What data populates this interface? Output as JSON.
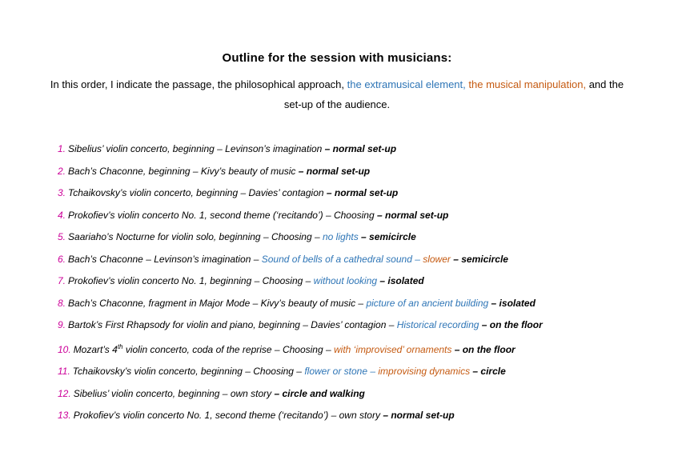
{
  "title": "Outline for the session with musicians:",
  "intro": {
    "segments": [
      {
        "text": "In this order, I indicate the passage, the philosophical approach, ",
        "style": "plain"
      },
      {
        "text": "the extramusical element,",
        "style": "blue"
      },
      {
        "text": " ",
        "style": "plain"
      },
      {
        "text": "the musical manipulation,",
        "style": "orange"
      },
      {
        "text": " and the set-up of the audience.",
        "style": "plain"
      }
    ]
  },
  "items": [
    {
      "number": "1.",
      "segments": [
        {
          "text": "Sibelius’ violin concerto, beginning – Levinson’s imagination ",
          "style": "plain"
        },
        {
          "text": "– normal set-up",
          "style": "bold"
        }
      ]
    },
    {
      "number": "2.",
      "segments": [
        {
          "text": "Bach’s Chaconne, beginning – Kivy’s beauty of music ",
          "style": "plain"
        },
        {
          "text": "– normal set-up",
          "style": "bold"
        }
      ]
    },
    {
      "number": "3.",
      "segments": [
        {
          "text": "Tchaikovsky’s violin concerto, beginning – Davies’ contagion ",
          "style": "plain"
        },
        {
          "text": "– normal set-up",
          "style": "bold"
        }
      ]
    },
    {
      "number": "4.",
      "segments": [
        {
          "text": "Prokofiev’s violin concerto No. 1, second theme (‘recitando’) – Choosing ",
          "style": "plain"
        },
        {
          "text": "– normal set-up",
          "style": "bold"
        }
      ]
    },
    {
      "number": "5.",
      "segments": [
        {
          "text": "Saariaho’s Nocturne for violin solo, beginning – Choosing – ",
          "style": "plain"
        },
        {
          "text": "no lights ",
          "style": "blue"
        },
        {
          "text": "– semicircle",
          "style": "bold"
        }
      ]
    },
    {
      "number": "6.",
      "segments": [
        {
          "text": "Bach’s Chaconne – Levinson’s imagination – ",
          "style": "plain"
        },
        {
          "text": "Sound of bells of a cathedral sound – ",
          "style": "blue"
        },
        {
          "text": "slower ",
          "style": "orange"
        },
        {
          "text": "– semicircle",
          "style": "bold"
        }
      ]
    },
    {
      "number": "7.",
      "segments": [
        {
          "text": "Prokofiev’s violin concerto No. 1, beginning – Choosing – ",
          "style": "plain"
        },
        {
          "text": "without looking ",
          "style": "blue"
        },
        {
          "text": "– isolated",
          "style": "bold"
        }
      ]
    },
    {
      "number": "8.",
      "segments": [
        {
          "text": "Bach’s Chaconne, fragment in Major Mode – Kivy’s beauty of music – ",
          "style": "plain"
        },
        {
          "text": "picture of an ancient building ",
          "style": "blue"
        },
        {
          "text": "– isolated",
          "style": "bold"
        }
      ]
    },
    {
      "number": "9.",
      "segments": [
        {
          "text": "Bartok’s First Rhapsody for violin and piano, beginning – Davies’ contagion – ",
          "style": "plain"
        },
        {
          "text": "Historical recording ",
          "style": "blue"
        },
        {
          "text": "– on the floor",
          "style": "bold"
        }
      ]
    },
    {
      "number": "10.",
      "segments": [
        {
          "text": "Mozart’s 4",
          "style": "plain"
        },
        {
          "text": "th",
          "style": "sup"
        },
        {
          "text": " violin concerto, coda of the reprise – Choosing – ",
          "style": "plain"
        },
        {
          "text": "with ‘improvised’ ornaments ",
          "style": "orange"
        },
        {
          "text": "– on the floor",
          "style": "bold"
        }
      ]
    },
    {
      "number": "11.",
      "segments": [
        {
          "text": "Tchaikovsky’s violin concerto, beginning – Choosing – ",
          "style": "plain"
        },
        {
          "text": "flower or stone – ",
          "style": "blue"
        },
        {
          "text": "improvising dynamics ",
          "style": "orange"
        },
        {
          "text": "– circle",
          "style": "bold"
        }
      ]
    },
    {
      "number": "12.",
      "segments": [
        {
          "text": "Sibelius’ violin concerto, beginning – own story ",
          "style": "plain"
        },
        {
          "text": "– circle and walking",
          "style": "bold"
        }
      ]
    },
    {
      "number": "13.",
      "segments": [
        {
          "text": "Prokofiev’s violin concerto No. 1, second theme (‘recitando’) – own story ",
          "style": "plain"
        },
        {
          "text": "– normal set-up",
          "style": "bold"
        }
      ]
    }
  ],
  "colors": {
    "accent_blue": "#2E75B6",
    "accent_orange": "#C55A11",
    "number_magenta": "#CC0099"
  }
}
